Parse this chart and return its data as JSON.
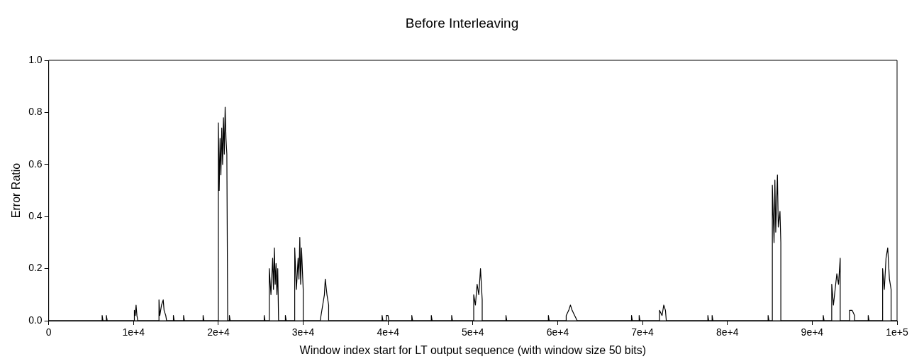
{
  "chart_data": {
    "type": "line",
    "title": "Before Interleaving",
    "xlabel": "Window index start for LT output sequence (with window size 50 bits)",
    "ylabel": "Error Ratio",
    "xlim": [
      0,
      100000
    ],
    "xticks": [
      0,
      {
        "value": 10000,
        "label": "1e+4"
      },
      {
        "value": 20000,
        "label": "2e+4"
      },
      {
        "value": 30000,
        "label": "3e+4"
      },
      {
        "value": 40000,
        "label": "4e+4"
      },
      {
        "value": 50000,
        "label": "5e+4"
      },
      {
        "value": 60000,
        "label": "6e+4"
      },
      {
        "value": 70000,
        "label": "7e+4"
      },
      {
        "value": 80000,
        "label": "8e+4"
      },
      {
        "value": 90000,
        "label": "9e+4"
      },
      {
        "value": 100000,
        "label": "1e+5"
      }
    ],
    "ylim": [
      0,
      1
    ],
    "yticks": [
      {
        "value": 0,
        "label": "0.0"
      },
      0.2,
      0.4,
      0.6,
      0.8,
      {
        "value": 1,
        "label": "1.0"
      }
    ],
    "grid": false,
    "legend": false,
    "marker": "none",
    "line_style": "solid",
    "series": [
      {
        "color": "#000000",
        "x": [
          0,
          6300,
          6300,
          6400,
          6800,
          6800,
          6900,
          10100,
          10100,
          10200,
          10300,
          10400,
          10500,
          13000,
          13000,
          13100,
          13300,
          13500,
          13600,
          13800,
          13900,
          14700,
          14700,
          14800,
          15900,
          15900,
          16000,
          18200,
          18200,
          18300,
          20000,
          20000,
          20100,
          20200,
          20300,
          20400,
          20500,
          20600,
          20700,
          20800,
          20900,
          21000,
          21100,
          21300,
          21300,
          21400,
          25400,
          25400,
          25500,
          26000,
          26000,
          26200,
          26400,
          26500,
          26600,
          26700,
          26800,
          26900,
          27000,
          27100,
          27900,
          27900,
          28000,
          29000,
          29000,
          29200,
          29400,
          29500,
          29600,
          29700,
          29800,
          30000,
          30000,
          32000,
          32100,
          32300,
          32500,
          32600,
          32800,
          33000,
          33000,
          39300,
          39300,
          39400,
          39800,
          39800,
          40000,
          40100,
          42800,
          42800,
          42900,
          45100,
          45100,
          45200,
          47500,
          47500,
          47600,
          50100,
          50100,
          50300,
          50500,
          50700,
          50900,
          51100,
          51100,
          53900,
          53900,
          54000,
          58900,
          58900,
          59000,
          61000,
          61000,
          61300,
          61500,
          61700,
          62000,
          62300,
          68700,
          68700,
          68800,
          69600,
          69600,
          69700,
          72000,
          72000,
          72300,
          72500,
          72700,
          72800,
          77700,
          77700,
          77800,
          78200,
          78200,
          78300,
          84800,
          84800,
          84900,
          85300,
          85300,
          85500,
          85600,
          85700,
          85900,
          86000,
          86200,
          86300,
          86300,
          91300,
          91300,
          91400,
          92300,
          92300,
          92500,
          92700,
          92900,
          93100,
          93300,
          93300,
          94400,
          94400,
          94700,
          95000,
          95000,
          96600,
          96600,
          96700,
          98300,
          98300,
          98500,
          98700,
          98900,
          99100,
          99300,
          99300,
          100000
        ],
        "values": [
          0,
          0,
          0.02,
          0,
          0,
          0.02,
          0,
          0,
          0.04,
          0.02,
          0.06,
          0.02,
          0,
          0,
          0.08,
          0.02,
          0.06,
          0.08,
          0.04,
          0.02,
          0,
          0,
          0.02,
          0,
          0,
          0.02,
          0,
          0,
          0.02,
          0,
          0,
          0.76,
          0.5,
          0.7,
          0.56,
          0.74,
          0.6,
          0.78,
          0.64,
          0.82,
          0.7,
          0.64,
          0,
          0,
          0.02,
          0,
          0,
          0.02,
          0,
          0,
          0.2,
          0.1,
          0.24,
          0.12,
          0.28,
          0.14,
          0.22,
          0.1,
          0.2,
          0,
          0,
          0.02,
          0,
          0,
          0.28,
          0.12,
          0.24,
          0.16,
          0.32,
          0.14,
          0.28,
          0.12,
          0,
          0,
          0.02,
          0.06,
          0.1,
          0.16,
          0.1,
          0.06,
          0,
          0,
          0.02,
          0,
          0,
          0.02,
          0.02,
          0,
          0,
          0.02,
          0,
          0,
          0.02,
          0,
          0,
          0.02,
          0,
          0,
          0.1,
          0.06,
          0.14,
          0.1,
          0.2,
          0.08,
          0,
          0,
          0.02,
          0,
          0,
          0.02,
          0,
          0,
          0.02,
          0.04,
          0.06,
          0.04,
          0.02,
          0,
          0,
          0.02,
          0,
          0,
          0.02,
          0,
          0,
          0.04,
          0.02,
          0.06,
          0.04,
          0,
          0,
          0.02,
          0,
          0,
          0.02,
          0,
          0,
          0.02,
          0,
          0,
          0.52,
          0.3,
          0.54,
          0.34,
          0.56,
          0.36,
          0.42,
          0.3,
          0,
          0,
          0.02,
          0,
          0,
          0.14,
          0.06,
          0.12,
          0.18,
          0.14,
          0.24,
          0,
          0,
          0.04,
          0.04,
          0.02,
          0,
          0,
          0.02,
          0,
          0,
          0.2,
          0.12,
          0.24,
          0.28,
          0.16,
          0.12,
          0,
          0
        ]
      }
    ]
  }
}
